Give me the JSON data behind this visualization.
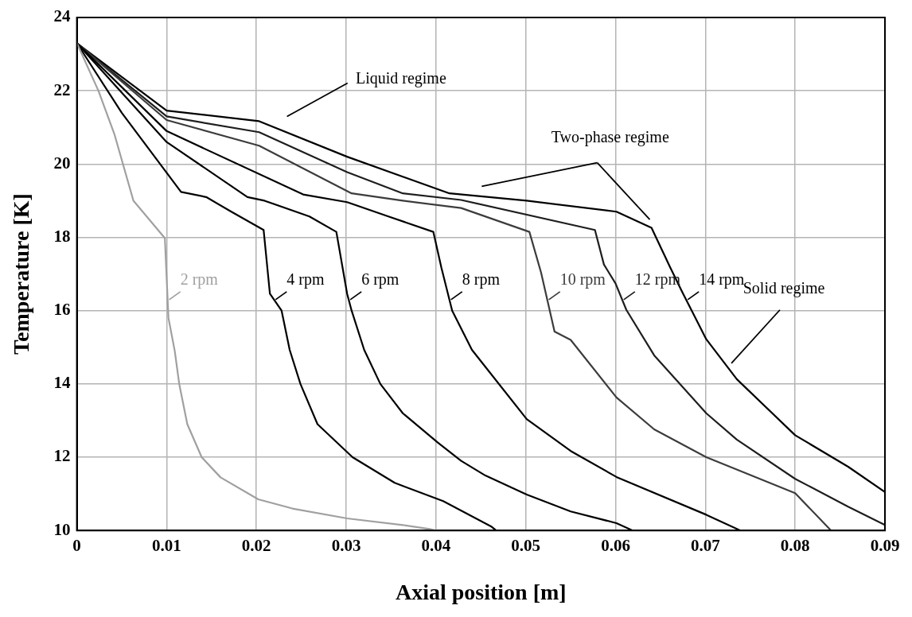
{
  "chart_data": {
    "type": "line",
    "xlabel": "Axial position [m]",
    "ylabel": "Temperature [K]",
    "xlim": [
      0,
      0.09
    ],
    "xticks": [
      0,
      0.01,
      0.02,
      0.03,
      0.04,
      0.05,
      0.06,
      0.07,
      0.08,
      0.09
    ],
    "ylim": [
      10,
      24
    ],
    "yticks": [
      10,
      12,
      14,
      16,
      18,
      20,
      22,
      24
    ],
    "grid": true,
    "legend": false,
    "marker": "none",
    "line_style": "solid",
    "annotations": [
      "Liquid regime",
      "Two-phase regime",
      "Solid regime"
    ],
    "series": [
      {
        "name": "2 rpm",
        "color": "#a0a0a0",
        "x": [
          0,
          0.0024,
          0.0042,
          0.0063,
          0.0098,
          0.0102,
          0.0109,
          0.0114,
          0.0123,
          0.0139,
          0.016,
          0.0202,
          0.024,
          0.0301,
          0.0363,
          0.0393,
          0.04
        ],
        "values": [
          23.3,
          22.0,
          20.8,
          19.0,
          17.98,
          15.8,
          14.9,
          14.0,
          12.9,
          12.0,
          11.45,
          10.85,
          10.6,
          10.33,
          10.15,
          10.04,
          10.0
        ]
      },
      {
        "name": "4 rpm",
        "color": "#000000",
        "x": [
          0,
          0.005,
          0.0116,
          0.0144,
          0.0172,
          0.0208,
          0.0215,
          0.0228,
          0.0237,
          0.0249,
          0.0268,
          0.0307,
          0.0354,
          0.0408,
          0.0462,
          0.0467
        ],
        "values": [
          23.3,
          21.4,
          19.24,
          19.1,
          18.7,
          18.2,
          16.46,
          16.0,
          14.93,
          14.0,
          12.9,
          12.0,
          11.3,
          10.8,
          10.1,
          10.0
        ]
      },
      {
        "name": "6 rpm",
        "color": "#000000",
        "x": [
          0,
          0.01,
          0.019,
          0.0209,
          0.0259,
          0.0289,
          0.0301,
          0.0306,
          0.032,
          0.0338,
          0.0363,
          0.0402,
          0.0428,
          0.0455,
          0.0501,
          0.055,
          0.0601,
          0.0619
        ],
        "values": [
          23.3,
          20.6,
          19.1,
          19.0,
          18.57,
          18.15,
          16.46,
          16.0,
          14.93,
          14.0,
          13.2,
          12.4,
          11.9,
          11.5,
          10.98,
          10.52,
          10.2,
          10.0
        ]
      },
      {
        "name": "8 rpm",
        "color": "#000000",
        "x": [
          0,
          0.01,
          0.0252,
          0.0301,
          0.0347,
          0.0397,
          0.0406,
          0.0418,
          0.044,
          0.0501,
          0.055,
          0.0601,
          0.0701,
          0.0739
        ],
        "values": [
          23.3,
          20.9,
          19.17,
          18.96,
          18.57,
          18.15,
          17.17,
          16.0,
          14.93,
          13.04,
          12.17,
          11.46,
          10.43,
          10.0
        ]
      },
      {
        "name": "10 rpm",
        "color": "#3c3c3c",
        "x": [
          0,
          0.01,
          0.0203,
          0.0306,
          0.0363,
          0.0428,
          0.0504,
          0.0517,
          0.0532,
          0.055,
          0.0601,
          0.0643,
          0.0701,
          0.08,
          0.084
        ],
        "values": [
          23.3,
          21.2,
          20.5,
          19.2,
          19.0,
          18.8,
          18.15,
          17.04,
          15.43,
          15.2,
          13.63,
          12.76,
          12.0,
          11.02,
          10.0
        ]
      },
      {
        "name": "12 rpm",
        "color": "#1e1e1e",
        "x": [
          0,
          0.01,
          0.0203,
          0.0301,
          0.0363,
          0.0428,
          0.0577,
          0.0587,
          0.06,
          0.0612,
          0.0643,
          0.0701,
          0.0735,
          0.08,
          0.0859,
          0.09
        ],
        "values": [
          23.3,
          21.3,
          20.87,
          19.78,
          19.2,
          19.02,
          18.2,
          17.26,
          16.74,
          16.02,
          14.78,
          13.2,
          12.48,
          11.41,
          10.65,
          10.15
        ]
      },
      {
        "name": "14 rpm",
        "color": "#000000",
        "x": [
          0,
          0.01,
          0.0203,
          0.0301,
          0.0415,
          0.0501,
          0.0601,
          0.064,
          0.0661,
          0.0674,
          0.0701,
          0.0735,
          0.08,
          0.0859,
          0.09
        ],
        "values": [
          23.3,
          21.46,
          21.17,
          20.2,
          19.2,
          19.0,
          18.7,
          18.26,
          17.17,
          16.52,
          15.22,
          14.13,
          12.6,
          11.74,
          11.05
        ]
      }
    ]
  }
}
